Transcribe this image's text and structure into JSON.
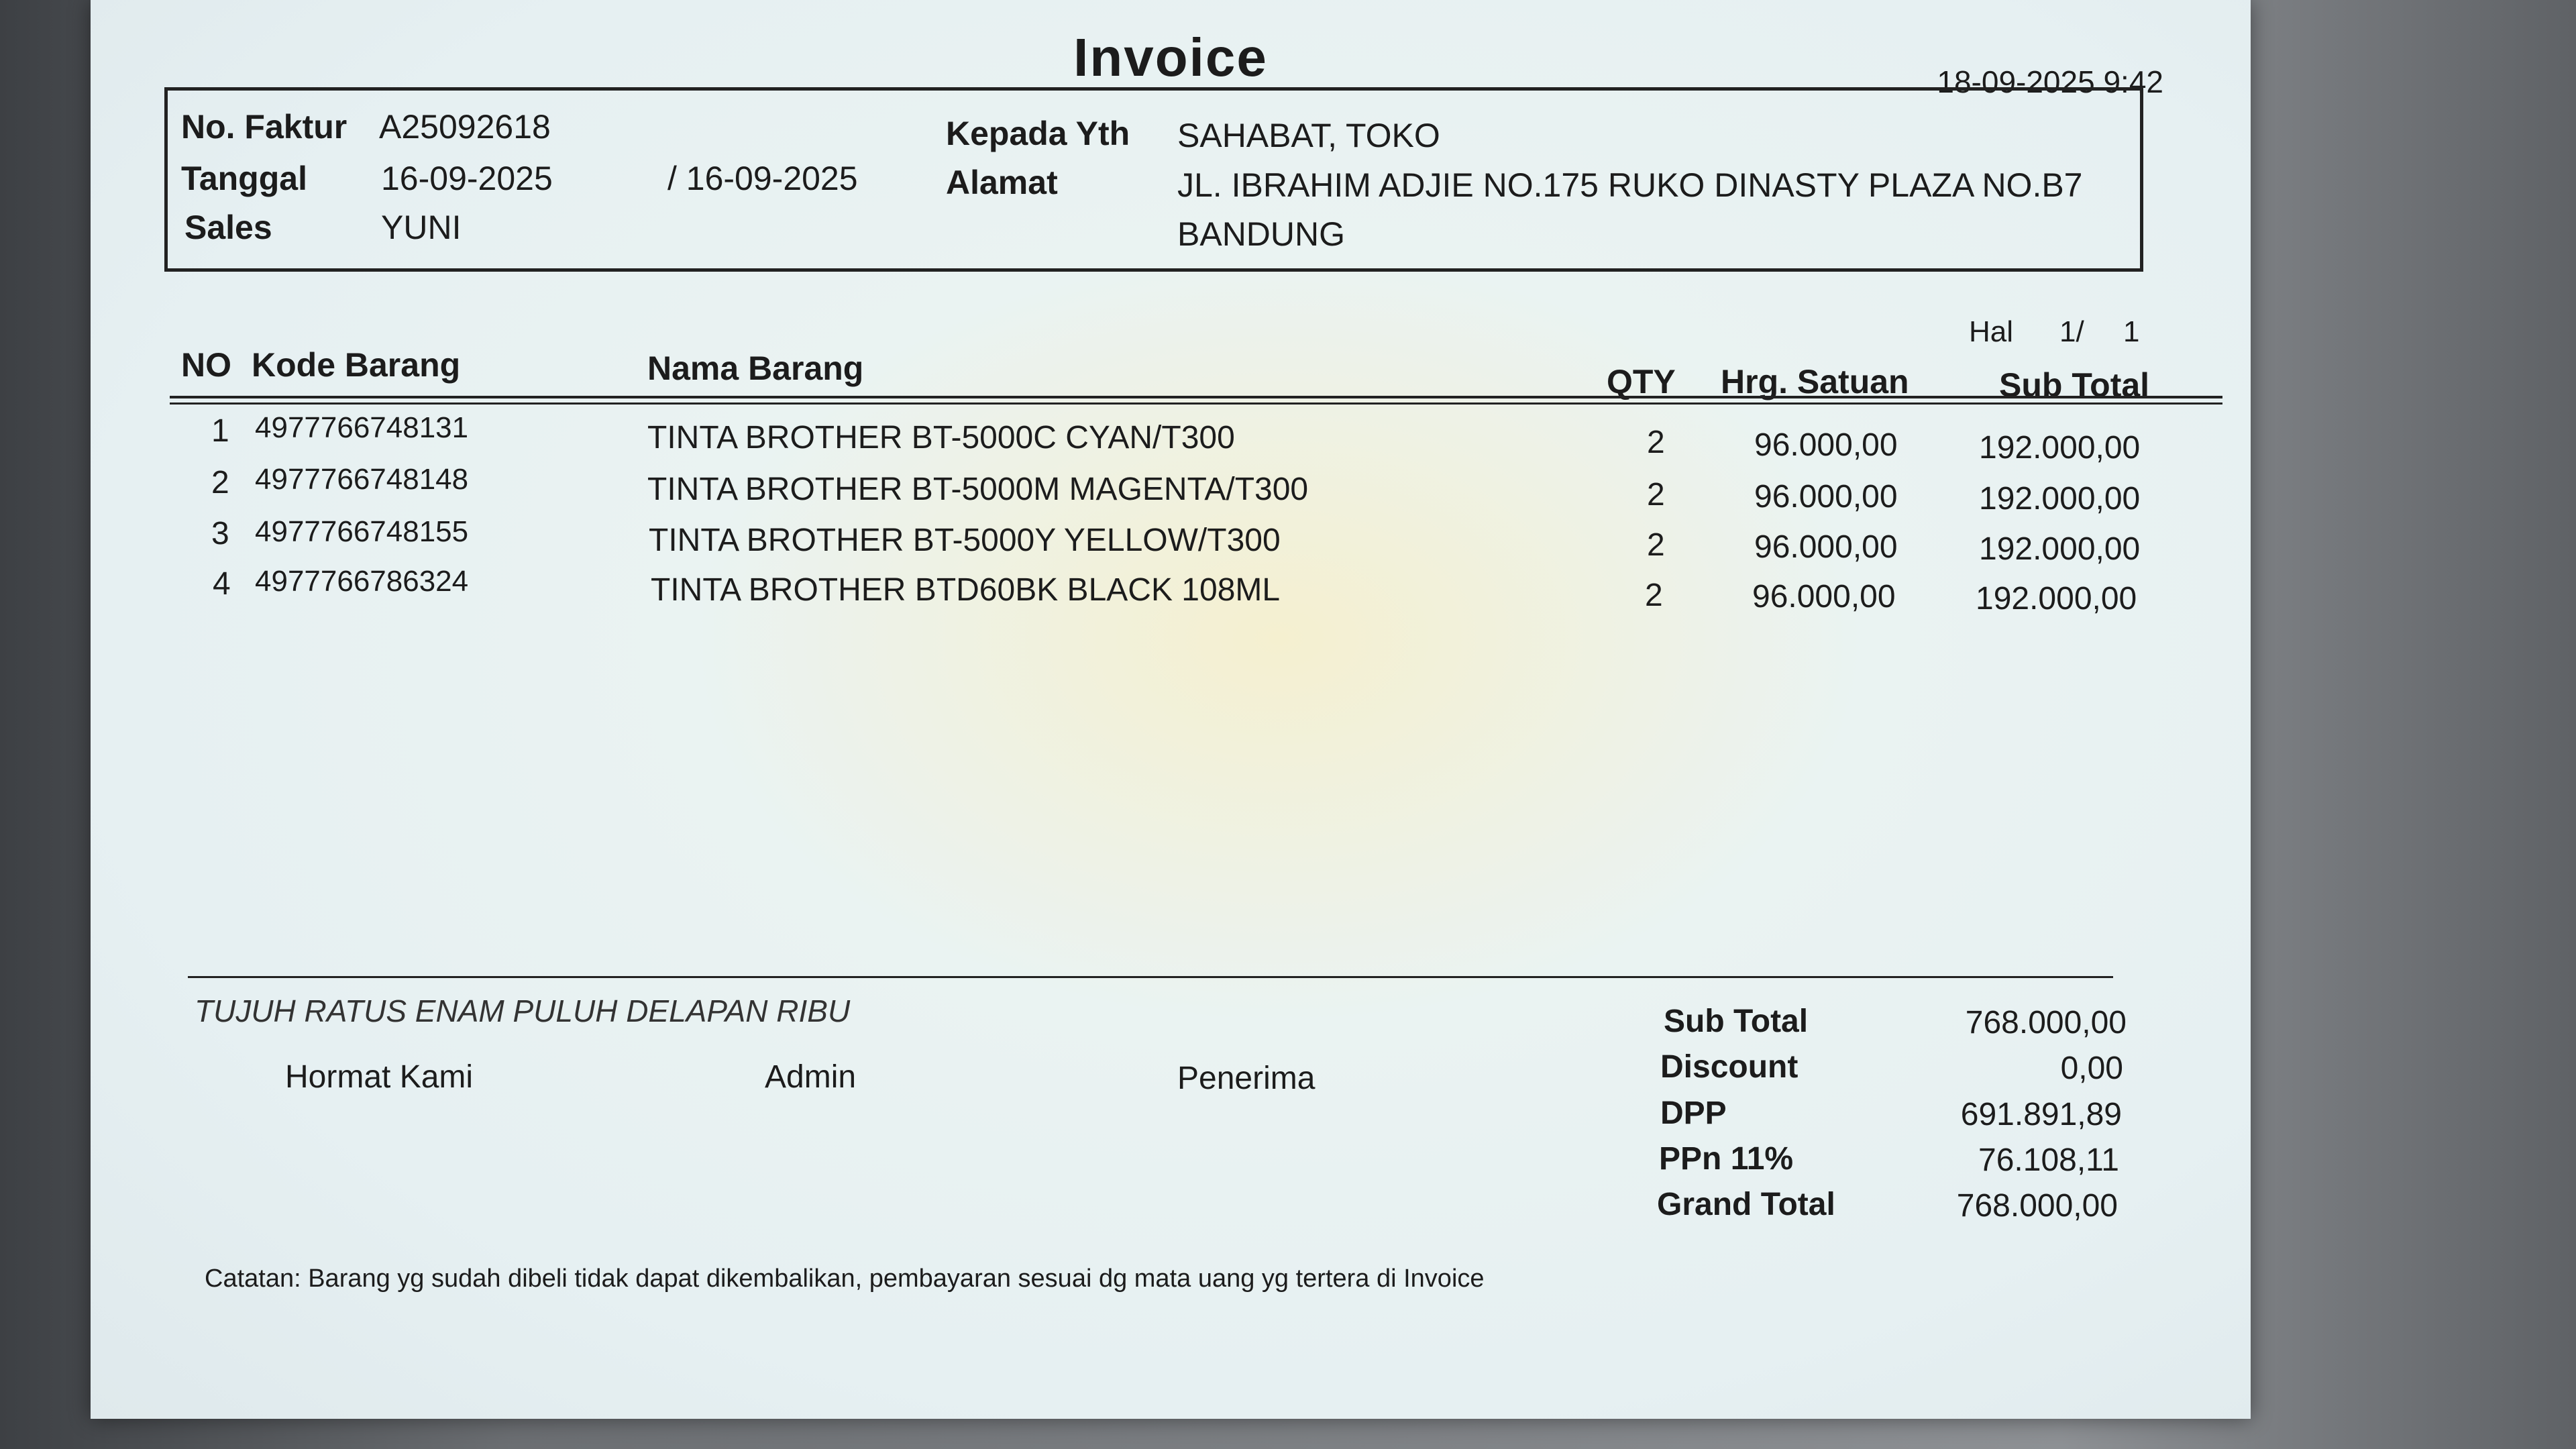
{
  "invoice": {
    "title": "Invoice",
    "printed_at": "18-09-2025 9:42"
  },
  "header": {
    "no_faktur_label": "No. Faktur",
    "no_faktur": "A25092618",
    "tanggal_label": "Tanggal",
    "tanggal": "16-09-2025",
    "tanggal_due": "/ 16-09-2025",
    "sales_label": "Sales",
    "sales": "YUNI",
    "kepada_label": "Kepada Yth",
    "kepada": "SAHABAT, TOKO",
    "alamat_label": "Alamat",
    "alamat_line1": "JL. IBRAHIM ADJIE NO.175 RUKO DINASTY PLAZA NO.B7",
    "alamat_line2": "BANDUNG"
  },
  "page": {
    "label": "Hal",
    "current": "1/",
    "total": "1"
  },
  "table": {
    "headers": {
      "no": "NO",
      "kode": "Kode Barang",
      "nama": "Nama Barang",
      "qty": "QTY",
      "harga": "Hrg. Satuan",
      "subtotal": "Sub Total"
    },
    "rows": [
      {
        "no": "1",
        "kode": "4977766748131",
        "nama": "TINTA BROTHER BT-5000C CYAN/T300",
        "qty": "2",
        "harga": "96.000,00",
        "subtotal": "192.000,00"
      },
      {
        "no": "2",
        "kode": "4977766748148",
        "nama": "TINTA BROTHER BT-5000M MAGENTA/T300",
        "qty": "2",
        "harga": "96.000,00",
        "subtotal": "192.000,00"
      },
      {
        "no": "3",
        "kode": "4977766748155",
        "nama": "TINTA BROTHER BT-5000Y YELLOW/T300",
        "qty": "2",
        "harga": "96.000,00",
        "subtotal": "192.000,00"
      },
      {
        "no": "4",
        "kode": "4977766786324",
        "nama": "TINTA BROTHER BTD60BK BLACK 108ML",
        "qty": "2",
        "harga": "96.000,00",
        "subtotal": "192.000,00"
      }
    ]
  },
  "footer": {
    "terbilang": "TUJUH RATUS ENAM PULUH DELAPAN RIBU",
    "sign_hormat": "Hormat Kami",
    "sign_admin": "Admin",
    "sign_penerima": "Penerima",
    "note": "Catatan: Barang yg sudah dibeli tidak dapat dikembalikan, pembayaran sesuai dg mata uang yg tertera di Invoice"
  },
  "totals": {
    "subtotal_label": "Sub Total",
    "subtotal": "768.000,00",
    "discount_label": "Discount",
    "discount": "0,00",
    "dpp_label": "DPP",
    "dpp": "691.891,89",
    "ppn_label": "PPn 11%",
    "ppn": "76.108,11",
    "grand_label": "Grand Total",
    "grand": "768.000,00"
  }
}
